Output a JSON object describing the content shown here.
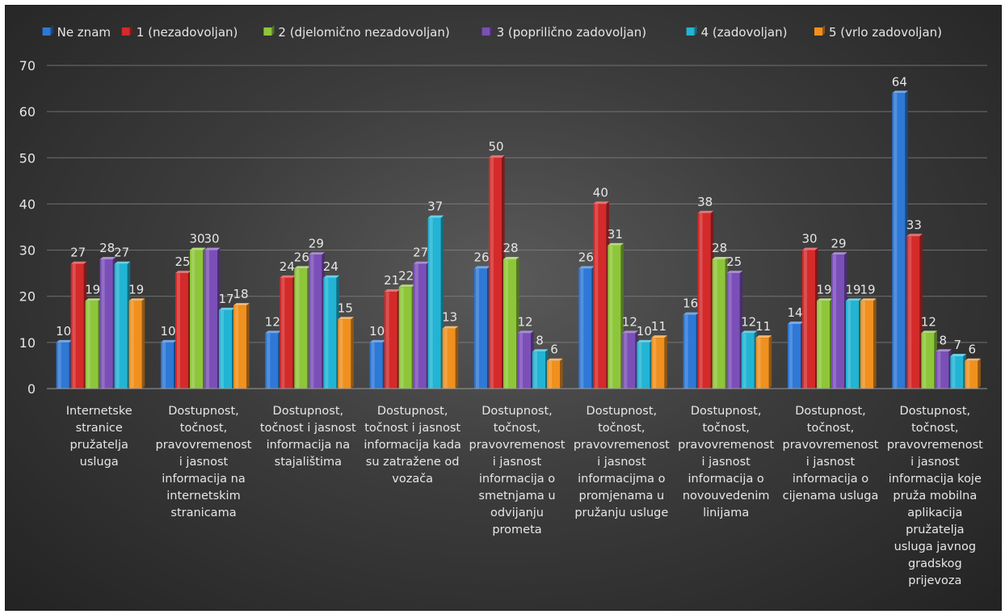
{
  "chart_data": {
    "type": "bar",
    "title": "",
    "xlabel": "",
    "ylabel": "",
    "ylim": [
      0,
      70
    ],
    "yticks": [
      "0",
      "10",
      "20",
      "30",
      "40",
      "50",
      "60",
      "70"
    ],
    "grid": true,
    "legend_position": "top",
    "categories": [
      "Internetske stranice pružatelja usluga",
      "Dostupnost, točnost, pravovremenost i jasnost informacija na internetskim stranicama",
      "Dostupnost, točnost i jasnost informacija na stajalištima",
      "Dostupnost, točnost i jasnost informacija kada su zatražene od vozača",
      "Dostupnost, točnost, pravovremenost i jasnost informacija o smetnjama u odvijanju prometa",
      "Dostupnost, točnost, pravovremenost i jasnost informacijma o promjenama u pružanju usluge",
      "Dostupnost, točnost, pravovremenost i jasnost informacija o novouvedenim linijama",
      "Dostupnost, točnost, pravovremenost i jasnost informacija o cijenama usluga",
      "Dostupnost, točnost, pravovremenost i jasnost informacija koje pruža mobilna aplikacija pružatelja usluga javnog gradskog prijevoza"
    ],
    "category_lines": [
      [
        "Internetske",
        "stranice",
        "pružatelja",
        "usluga"
      ],
      [
        "Dostupnost,",
        "točnost,",
        "pravovremenost",
        "i jasnost",
        "informacija na",
        "internetskim",
        "stranicama"
      ],
      [
        "Dostupnost,",
        "točnost i jasnost",
        "informacija na",
        "stajalištima"
      ],
      [
        "Dostupnost,",
        "točnost i jasnost",
        "informacija kada",
        "su zatražene od",
        "vozača"
      ],
      [
        "Dostupnost,",
        "točnost,",
        "pravovremenost",
        "i jasnost",
        "informacija o",
        "smetnjama u",
        "odvijanju",
        "prometa"
      ],
      [
        "Dostupnost,",
        "točnost,",
        "pravovremenost",
        "i jasnost",
        "informacijma o",
        "promjenama u",
        "pružanju usluge"
      ],
      [
        "Dostupnost,",
        "točnost,",
        "pravovremenost",
        "i jasnost",
        "informacija o",
        "novouvedenim",
        "linijama"
      ],
      [
        "Dostupnost,",
        "točnost,",
        "pravovremenost",
        "i jasnost",
        "informacija o",
        "cijenama usluga"
      ],
      [
        "Dostupnost,",
        "točnost,",
        "pravovremenost",
        "i jasnost",
        "informacija koje",
        "pruža mobilna",
        "aplikacija",
        "pružatelja",
        "usluga javnog",
        "gradskog",
        "prijevoza"
      ]
    ],
    "series": [
      {
        "name": "Ne znam",
        "color": "#2e78d6",
        "values": [
          10,
          10,
          12,
          10,
          26,
          26,
          16,
          14,
          64
        ]
      },
      {
        "name": "1 (nezadovoljan)",
        "color": "#d42a2a",
        "values": [
          27,
          25,
          24,
          21,
          50,
          40,
          38,
          30,
          33
        ]
      },
      {
        "name": "2 (djelomično nezadovoljan)",
        "color": "#8ec63a",
        "values": [
          19,
          30,
          26,
          22,
          28,
          31,
          28,
          19,
          12
        ]
      },
      {
        "name": "3 (poprilično zadovoljan)",
        "color": "#7b4fb8",
        "values": [
          28,
          30,
          29,
          27,
          12,
          12,
          25,
          29,
          8
        ]
      },
      {
        "name": "4 (zadovoljan)",
        "color": "#22b4d4",
        "values": [
          27,
          17,
          24,
          37,
          8,
          10,
          12,
          19,
          7
        ]
      },
      {
        "name": "5 (vrlo zadovoljan)",
        "color": "#f0901e",
        "values": [
          19,
          18,
          15,
          13,
          6,
          11,
          11,
          19,
          6
        ]
      }
    ]
  }
}
